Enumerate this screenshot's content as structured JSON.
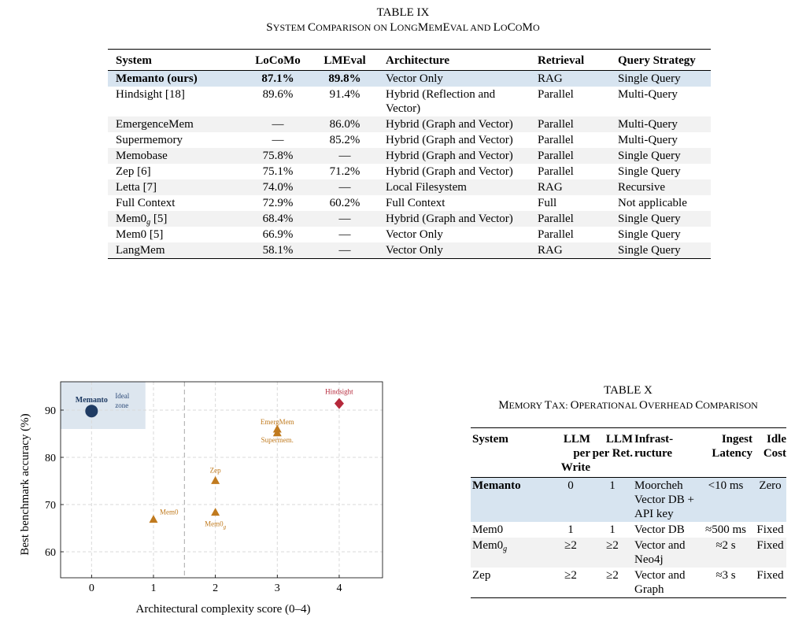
{
  "table9": {
    "label": "TABLE IX",
    "title_parts": [
      {
        "t": "S",
        "big": true
      },
      {
        "t": "YSTEM ",
        "big": false
      },
      {
        "t": "C",
        "big": true
      },
      {
        "t": "OMPARISON ON ",
        "big": false
      },
      {
        "t": "L",
        "big": true
      },
      {
        "t": "ONG",
        "big": false
      },
      {
        "t": "M",
        "big": true
      },
      {
        "t": "EM",
        "big": false
      },
      {
        "t": "E",
        "big": true
      },
      {
        "t": "VAL AND ",
        "big": false
      },
      {
        "t": "L",
        "big": true
      },
      {
        "t": "O",
        "big": false
      },
      {
        "t": "C",
        "big": true
      },
      {
        "t": "O",
        "big": false
      },
      {
        "t": "M",
        "big": true
      },
      {
        "t": "O",
        "big": false
      }
    ],
    "headers": [
      "System",
      "LoCoMo",
      "LMEval",
      "Architecture",
      "Retrieval",
      "Query Strategy"
    ],
    "rows": [
      {
        "system": "Memanto (ours)",
        "sub": "",
        "locomo": "87.1%",
        "lmeval": "89.8%",
        "arch": "Vector Only",
        "retrieval": "RAG",
        "query": "Single Query",
        "style": "hl"
      },
      {
        "system": "Hindsight [18]",
        "sub": "",
        "locomo": "89.6%",
        "lmeval": "91.4%",
        "arch": "Hybrid (Reflection and Vector)",
        "retrieval": "Parallel",
        "query": "Multi-Query",
        "style": ""
      },
      {
        "system": "EmergenceMem",
        "sub": "",
        "locomo": "—",
        "lmeval": "86.0%",
        "arch": "Hybrid (Graph and Vector)",
        "retrieval": "Parallel",
        "query": "Multi-Query",
        "style": "alt"
      },
      {
        "system": "Supermemory",
        "sub": "",
        "locomo": "—",
        "lmeval": "85.2%",
        "arch": "Hybrid (Graph and Vector)",
        "retrieval": "Parallel",
        "query": "Multi-Query",
        "style": ""
      },
      {
        "system": "Memobase",
        "sub": "",
        "locomo": "75.8%",
        "lmeval": "—",
        "arch": "Hybrid (Graph and Vector)",
        "retrieval": "Parallel",
        "query": "Single Query",
        "style": "alt"
      },
      {
        "system": "Zep [6]",
        "sub": "",
        "locomo": "75.1%",
        "lmeval": "71.2%",
        "arch": "Hybrid (Graph and Vector)",
        "retrieval": "Parallel",
        "query": "Single Query",
        "style": ""
      },
      {
        "system": "Letta [7]",
        "sub": "",
        "locomo": "74.0%",
        "lmeval": "—",
        "arch": "Local Filesystem",
        "retrieval": "RAG",
        "query": "Recursive",
        "style": "alt"
      },
      {
        "system": "Full Context",
        "sub": "",
        "locomo": "72.9%",
        "lmeval": "60.2%",
        "arch": "Full Context",
        "retrieval": "Full",
        "query": "Not applicable",
        "style": ""
      },
      {
        "system": "Mem0",
        "sub": "g",
        "post": " [5]",
        "locomo": "68.4%",
        "lmeval": "—",
        "arch": "Hybrid (Graph and Vector)",
        "retrieval": "Parallel",
        "query": "Single Query",
        "style": "alt"
      },
      {
        "system": "Mem0 [5]",
        "sub": "",
        "locomo": "66.9%",
        "lmeval": "—",
        "arch": "Vector Only",
        "retrieval": "Parallel",
        "query": "Single Query",
        "style": ""
      },
      {
        "system": "LangMem",
        "sub": "",
        "locomo": "58.1%",
        "lmeval": "—",
        "arch": "Vector Only",
        "retrieval": "RAG",
        "query": "Single Query",
        "style": "alt"
      }
    ]
  },
  "chart_data": {
    "type": "scatter",
    "xlabel": "Architectural complexity score (0–4)",
    "ylabel": "Best benchmark accuracy (%)",
    "xticks": [
      0,
      1,
      2,
      3,
      4
    ],
    "yticks": [
      60,
      70,
      80,
      90
    ],
    "xlim": [
      -0.5,
      4.7
    ],
    "ylim": [
      54.5,
      96.0
    ],
    "grid": true,
    "shaded_region": {
      "x": [
        -0.5,
        0.87
      ],
      "y": [
        86.0,
        96.0
      ],
      "label": "Ideal zone",
      "color": "#dde6ef"
    },
    "vline_dashed_x": 1.5,
    "points": [
      {
        "name": "Memanto",
        "x": 0,
        "y": 89.8,
        "marker": "circle",
        "color": "#1f3b63"
      },
      {
        "name": "Mem0",
        "x": 1,
        "y": 66.9,
        "marker": "triangle",
        "color": "#c07a1e"
      },
      {
        "name": "Zep",
        "x": 2,
        "y": 75.1,
        "marker": "triangle",
        "color": "#c07a1e"
      },
      {
        "name": "Mem0g",
        "x": 2,
        "y": 68.4,
        "marker": "triangle",
        "color": "#c07a1e"
      },
      {
        "name": "EmergMem",
        "x": 3,
        "y": 86.0,
        "marker": "triangle",
        "color": "#c07a1e"
      },
      {
        "name": "Supermem.",
        "x": 3,
        "y": 85.2,
        "marker": "triangle",
        "color": "#c07a1e"
      },
      {
        "name": "Hindsight",
        "x": 4,
        "y": 91.4,
        "marker": "diamond",
        "color": "#b5283a"
      }
    ]
  },
  "table10": {
    "label": "TABLE X",
    "title_parts": [
      {
        "t": "M",
        "big": true
      },
      {
        "t": "EMORY ",
        "big": false
      },
      {
        "t": "T",
        "big": true
      },
      {
        "t": "AX: ",
        "big": false
      },
      {
        "t": "O",
        "big": true
      },
      {
        "t": "PERATIONAL ",
        "big": false
      },
      {
        "t": "O",
        "big": true
      },
      {
        "t": "VERHEAD ",
        "big": false
      },
      {
        "t": "C",
        "big": true
      },
      {
        "t": "OMPARISON",
        "big": false
      }
    ],
    "headers": [
      "System",
      "LLM per Write",
      "LLM per Ret.",
      "Infrast- ructure",
      "Ingest Latency",
      "Idle Cost"
    ],
    "rows": [
      {
        "system": "Memanto",
        "sub": "",
        "write": "0",
        "ret": "1",
        "infra": "Moorcheh Vector DB + API key",
        "latency": "<10 ms",
        "idle": "Zero",
        "style": "hl"
      },
      {
        "system": "Mem0",
        "sub": "",
        "write": "1",
        "ret": "1",
        "infra": "Vector DB",
        "latency": "≈500 ms",
        "idle": "Fixed",
        "style": ""
      },
      {
        "system": "Mem0",
        "sub": "g",
        "write": "≥2",
        "ret": "≥2",
        "infra": "Vector and Neo4j",
        "latency": "≈2 s",
        "idle": "Fixed",
        "style": "alt"
      },
      {
        "system": "Zep",
        "sub": "",
        "write": "≥2",
        "ret": "≥2",
        "infra": "Vector and Graph",
        "latency": "≈3 s",
        "idle": "Fixed",
        "style": ""
      }
    ]
  }
}
